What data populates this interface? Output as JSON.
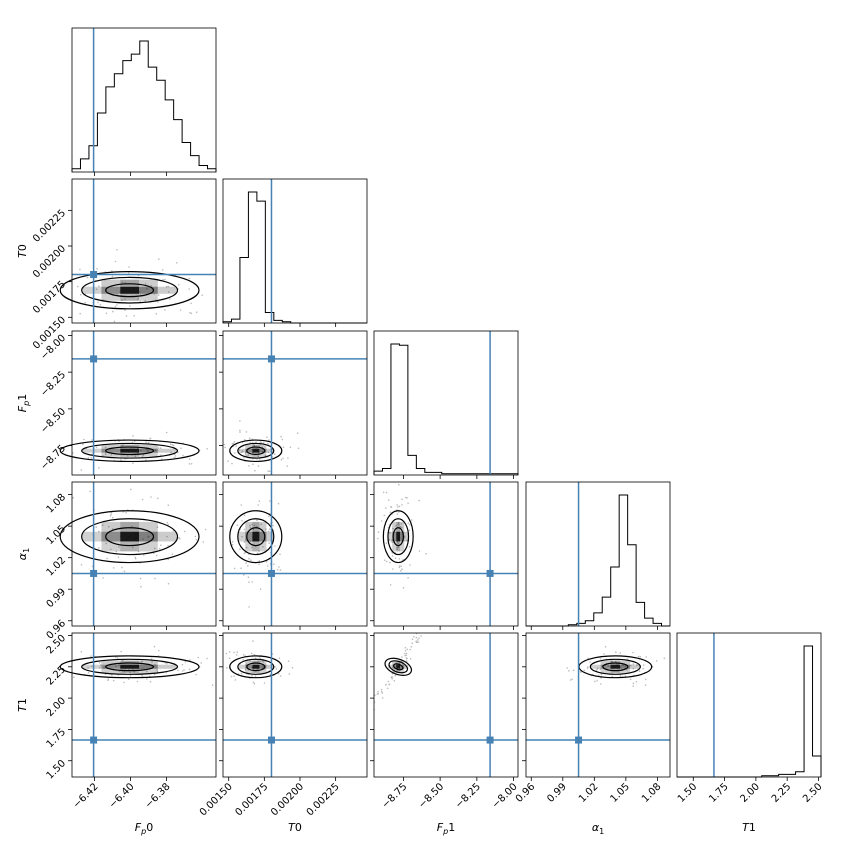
{
  "chart_data": {
    "type": "corner",
    "params": [
      {
        "label": "F_p0",
        "latex": "F",
        "sub": "p",
        "suffix": "0",
        "range": [
          -6.4325,
          -6.3525
        ],
        "ticks": [
          -6.42,
          -6.4,
          -6.38
        ],
        "tick_labels": [
          "−6.42",
          "−6.40",
          "−6.38"
        ],
        "truth": -6.4205,
        "median": -6.4005,
        "spread": 0.0095
      },
      {
        "label": "T0",
        "latex": "T",
        "sub": "",
        "suffix": "0",
        "range": [
          0.00146,
          0.00247
        ],
        "ticks": [
          0.0015,
          0.00175,
          0.002,
          0.00225
        ],
        "tick_labels": [
          "0.00150",
          "0.00175",
          "0.00200",
          "0.00225"
        ],
        "truth": 0.0018,
        "median": 0.00169,
        "spread": 4.5e-05
      },
      {
        "label": "F_p1",
        "latex": "F",
        "sub": "p",
        "suffix": "1",
        "range": [
          -8.95,
          -7.97
        ],
        "ticks": [
          -8.75,
          -8.5,
          -8.25,
          -8.0
        ],
        "tick_labels": [
          "−8.75",
          "−8.50",
          "−8.25",
          "−8.00"
        ],
        "truth": -8.16,
        "median": -8.785,
        "spread": 0.025
      },
      {
        "label": "alpha_1",
        "latex": "α",
        "sub": "1",
        "suffix": "",
        "range": [
          0.955,
          1.092
        ],
        "ticks": [
          0.96,
          0.99,
          1.02,
          1.05,
          1.08
        ],
        "tick_labels": [
          "0.96",
          "0.99",
          "1.02",
          "1.05",
          "1.08"
        ],
        "truth": 1.005,
        "median": 1.04,
        "spread": 0.0085
      },
      {
        "label": "T1",
        "latex": "T",
        "sub": "",
        "suffix": "1",
        "range": [
          1.37,
          2.52
        ],
        "ticks": [
          1.5,
          1.75,
          2.0,
          2.25,
          2.5
        ],
        "tick_labels": [
          "1.50",
          "1.75",
          "2.00",
          "2.25",
          "2.50"
        ],
        "truth": 1.665,
        "median": 2.25,
        "spread": 0.03
      }
    ],
    "histograms": [
      [
        1,
        4,
        8,
        18,
        26,
        30,
        34,
        36,
        40,
        32,
        28,
        22,
        16,
        9,
        5,
        2,
        1
      ],
      [
        1,
        3,
        50,
        100,
        93,
        8,
        2,
        1,
        0,
        0,
        0,
        0,
        0,
        0,
        0,
        0,
        0
      ],
      [
        3,
        5,
        100,
        99,
        15,
        5,
        2,
        2,
        1,
        1,
        1,
        1,
        1,
        1,
        1,
        1,
        1
      ],
      [
        0,
        0,
        0,
        0,
        0,
        1,
        2,
        4,
        10,
        22,
        45,
        100,
        62,
        18,
        6,
        2,
        0
      ],
      [
        0,
        0,
        0,
        0,
        0,
        0,
        0,
        0,
        0,
        0,
        1,
        1,
        2,
        2,
        4,
        100,
        16
      ]
    ],
    "truth_color": "#4682b4",
    "line_color": "#000000"
  }
}
